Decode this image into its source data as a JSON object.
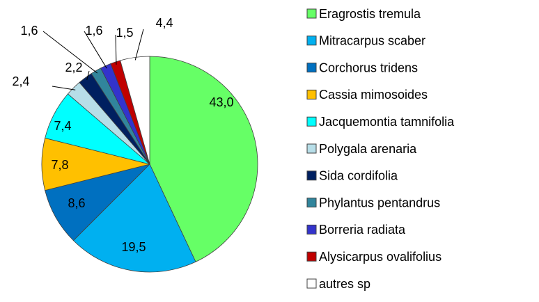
{
  "chart_data": {
    "type": "pie",
    "categories": [
      "Eragrostis tremula",
      "Mitracarpus scaber",
      "Corchorus tridens",
      "Cassia mimosoides",
      "Jacquemontia tamnifolia",
      "Polygala arenaria",
      "Sida cordifolia",
      "Phylantus pentandrus",
      "Borreria radiata",
      "Alysicarpus ovalifolius",
      "autres sp"
    ],
    "values": [
      43.0,
      19.5,
      8.6,
      7.8,
      7.4,
      2.4,
      2.2,
      1.6,
      1.6,
      1.5,
      4.4
    ],
    "value_labels": [
      "43,0",
      "19,5",
      "8,6",
      "7,8",
      "7,4",
      "2,4",
      "2,2",
      "1,6",
      "1,6",
      "1,5",
      "4,4"
    ],
    "colors": [
      "#66ff66",
      "#00b0f0",
      "#0070c0",
      "#ffc000",
      "#00ffff",
      "#b7dee8",
      "#002060",
      "#31859c",
      "#3333cc",
      "#c00000",
      "#ffffff"
    ],
    "legend": "right"
  }
}
